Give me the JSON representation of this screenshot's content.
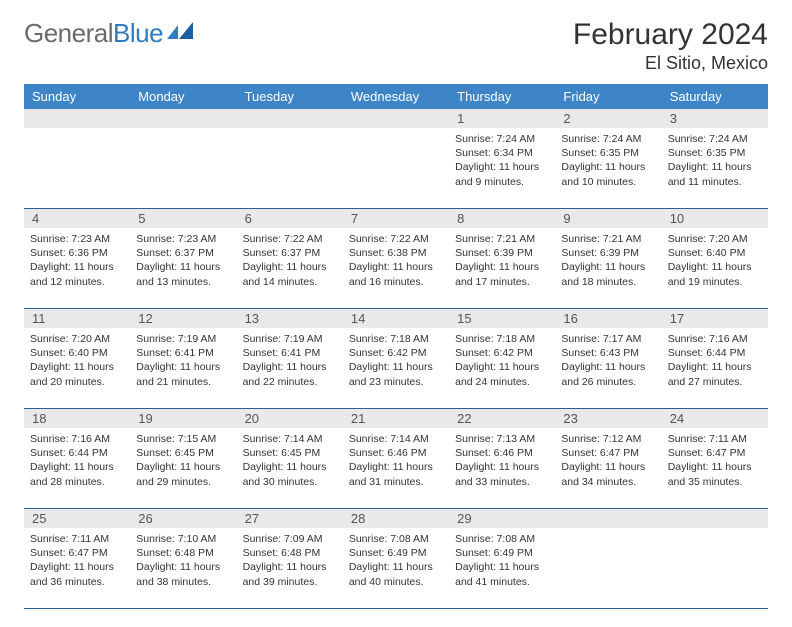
{
  "logo": {
    "text1": "General",
    "text2": "Blue"
  },
  "title": "February 2024",
  "subtitle": "El Sitio, Mexico",
  "colors": {
    "headerBg": "#3d85c6",
    "headerText": "#ffffff",
    "dayNumBg": "#e9e9e9",
    "weekBorder": "#2e5e8d",
    "bodyText": "#333333",
    "logoGrey": "#6b6b6b",
    "logoBlue": "#2f7dc0"
  },
  "dayNames": [
    "Sunday",
    "Monday",
    "Tuesday",
    "Wednesday",
    "Thursday",
    "Friday",
    "Saturday"
  ],
  "weeks": [
    [
      {
        "n": "",
        "sr": "",
        "ss": "",
        "dl": ""
      },
      {
        "n": "",
        "sr": "",
        "ss": "",
        "dl": ""
      },
      {
        "n": "",
        "sr": "",
        "ss": "",
        "dl": ""
      },
      {
        "n": "",
        "sr": "",
        "ss": "",
        "dl": ""
      },
      {
        "n": "1",
        "sr": "7:24 AM",
        "ss": "6:34 PM",
        "dl": "11 hours and 9 minutes."
      },
      {
        "n": "2",
        "sr": "7:24 AM",
        "ss": "6:35 PM",
        "dl": "11 hours and 10 minutes."
      },
      {
        "n": "3",
        "sr": "7:24 AM",
        "ss": "6:35 PM",
        "dl": "11 hours and 11 minutes."
      }
    ],
    [
      {
        "n": "4",
        "sr": "7:23 AM",
        "ss": "6:36 PM",
        "dl": "11 hours and 12 minutes."
      },
      {
        "n": "5",
        "sr": "7:23 AM",
        "ss": "6:37 PM",
        "dl": "11 hours and 13 minutes."
      },
      {
        "n": "6",
        "sr": "7:22 AM",
        "ss": "6:37 PM",
        "dl": "11 hours and 14 minutes."
      },
      {
        "n": "7",
        "sr": "7:22 AM",
        "ss": "6:38 PM",
        "dl": "11 hours and 16 minutes."
      },
      {
        "n": "8",
        "sr": "7:21 AM",
        "ss": "6:39 PM",
        "dl": "11 hours and 17 minutes."
      },
      {
        "n": "9",
        "sr": "7:21 AM",
        "ss": "6:39 PM",
        "dl": "11 hours and 18 minutes."
      },
      {
        "n": "10",
        "sr": "7:20 AM",
        "ss": "6:40 PM",
        "dl": "11 hours and 19 minutes."
      }
    ],
    [
      {
        "n": "11",
        "sr": "7:20 AM",
        "ss": "6:40 PM",
        "dl": "11 hours and 20 minutes."
      },
      {
        "n": "12",
        "sr": "7:19 AM",
        "ss": "6:41 PM",
        "dl": "11 hours and 21 minutes."
      },
      {
        "n": "13",
        "sr": "7:19 AM",
        "ss": "6:41 PM",
        "dl": "11 hours and 22 minutes."
      },
      {
        "n": "14",
        "sr": "7:18 AM",
        "ss": "6:42 PM",
        "dl": "11 hours and 23 minutes."
      },
      {
        "n": "15",
        "sr": "7:18 AM",
        "ss": "6:42 PM",
        "dl": "11 hours and 24 minutes."
      },
      {
        "n": "16",
        "sr": "7:17 AM",
        "ss": "6:43 PM",
        "dl": "11 hours and 26 minutes."
      },
      {
        "n": "17",
        "sr": "7:16 AM",
        "ss": "6:44 PM",
        "dl": "11 hours and 27 minutes."
      }
    ],
    [
      {
        "n": "18",
        "sr": "7:16 AM",
        "ss": "6:44 PM",
        "dl": "11 hours and 28 minutes."
      },
      {
        "n": "19",
        "sr": "7:15 AM",
        "ss": "6:45 PM",
        "dl": "11 hours and 29 minutes."
      },
      {
        "n": "20",
        "sr": "7:14 AM",
        "ss": "6:45 PM",
        "dl": "11 hours and 30 minutes."
      },
      {
        "n": "21",
        "sr": "7:14 AM",
        "ss": "6:46 PM",
        "dl": "11 hours and 31 minutes."
      },
      {
        "n": "22",
        "sr": "7:13 AM",
        "ss": "6:46 PM",
        "dl": "11 hours and 33 minutes."
      },
      {
        "n": "23",
        "sr": "7:12 AM",
        "ss": "6:47 PM",
        "dl": "11 hours and 34 minutes."
      },
      {
        "n": "24",
        "sr": "7:11 AM",
        "ss": "6:47 PM",
        "dl": "11 hours and 35 minutes."
      }
    ],
    [
      {
        "n": "25",
        "sr": "7:11 AM",
        "ss": "6:47 PM",
        "dl": "11 hours and 36 minutes."
      },
      {
        "n": "26",
        "sr": "7:10 AM",
        "ss": "6:48 PM",
        "dl": "11 hours and 38 minutes."
      },
      {
        "n": "27",
        "sr": "7:09 AM",
        "ss": "6:48 PM",
        "dl": "11 hours and 39 minutes."
      },
      {
        "n": "28",
        "sr": "7:08 AM",
        "ss": "6:49 PM",
        "dl": "11 hours and 40 minutes."
      },
      {
        "n": "29",
        "sr": "7:08 AM",
        "ss": "6:49 PM",
        "dl": "11 hours and 41 minutes."
      },
      {
        "n": "",
        "sr": "",
        "ss": "",
        "dl": ""
      },
      {
        "n": "",
        "sr": "",
        "ss": "",
        "dl": ""
      }
    ]
  ],
  "labels": {
    "sunrise": "Sunrise:",
    "sunset": "Sunset:",
    "daylight": "Daylight:"
  }
}
